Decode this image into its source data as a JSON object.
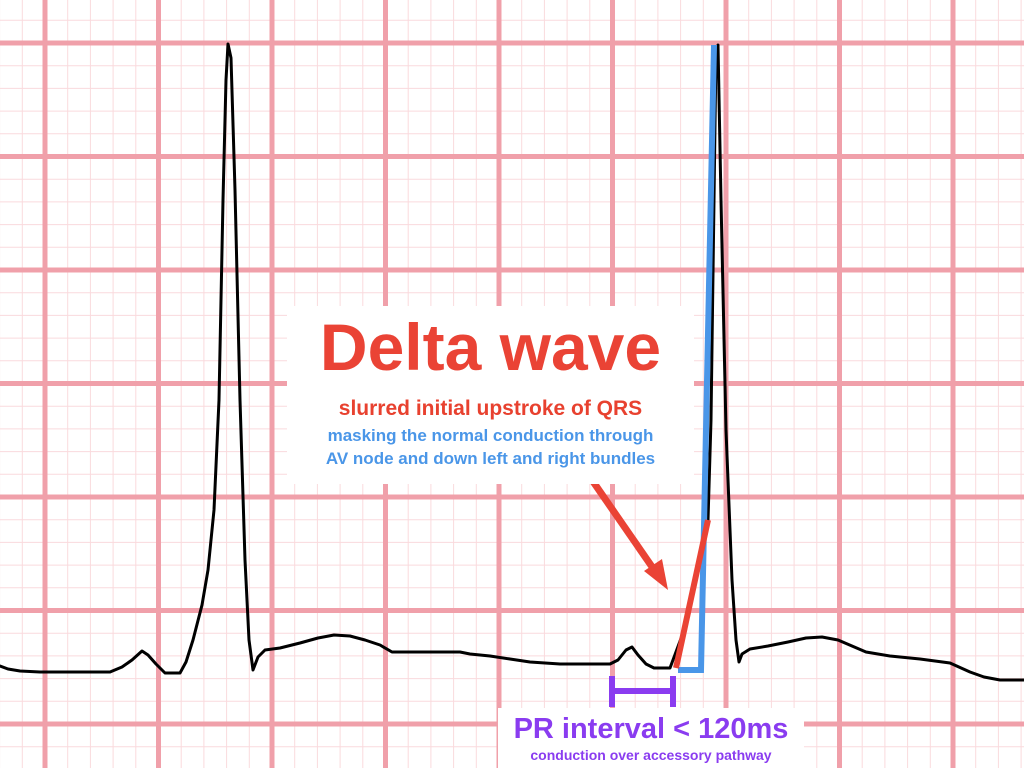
{
  "delta_wave": {
    "title": "Delta wave",
    "line1": "slurred initial upstroke of QRS",
    "line2": "masking the normal conduction through",
    "line3": "AV node and down left and right bundles"
  },
  "pr_interval": {
    "title": "PR interval < 120ms",
    "subtitle": "conduction over accessory pathway"
  },
  "colors": {
    "grid_major": "#f0a0aa",
    "grid_minor": "#fadadd",
    "trace": "#000000",
    "delta_red": "#ea4335",
    "qrs_blue": "#4a96e8",
    "pr_purple": "#8a3cf0"
  }
}
